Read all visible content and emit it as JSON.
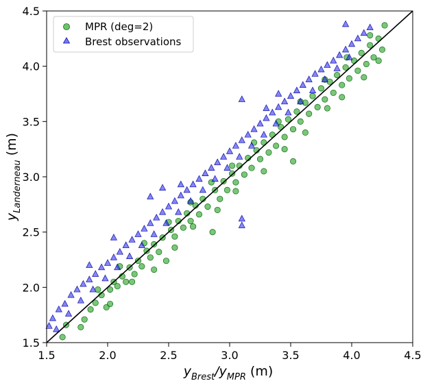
{
  "chart_data": {
    "type": "scatter",
    "xlabel": "y_Brest / y_MPR (m)",
    "ylabel": "y_Landerneau (m)",
    "xlim": [
      1.5,
      4.5
    ],
    "ylim": [
      1.5,
      4.5
    ],
    "xticks": [
      "1.5",
      "2.0",
      "2.5",
      "3.0",
      "3.5",
      "4.0",
      "4.5"
    ],
    "yticks": [
      "1.5",
      "2.0",
      "2.5",
      "3.0",
      "3.5",
      "4.0",
      "4.5"
    ],
    "grid": false,
    "legend_position": "top-left",
    "reference_line": {
      "from": [
        1.5,
        1.5
      ],
      "to": [
        4.5,
        4.5
      ],
      "color": "#000000"
    },
    "series": [
      {
        "name": "MPR (deg=2)",
        "marker": "circle",
        "color": "#22a022",
        "points": [
          [
            1.63,
            1.55
          ],
          [
            1.66,
            1.66
          ],
          [
            1.78,
            1.64
          ],
          [
            1.81,
            1.71
          ],
          [
            1.86,
            1.8
          ],
          [
            1.9,
            1.86
          ],
          [
            1.95,
            1.93
          ],
          [
            1.99,
            1.82
          ],
          [
            2.02,
            1.98
          ],
          [
            2.05,
            2.05
          ],
          [
            2.08,
            2.01
          ],
          [
            2.12,
            2.1
          ],
          [
            2.15,
            2.05
          ],
          [
            2.18,
            2.18
          ],
          [
            2.22,
            2.12
          ],
          [
            2.25,
            2.24
          ],
          [
            2.28,
            2.19
          ],
          [
            2.32,
            2.33
          ],
          [
            2.35,
            2.27
          ],
          [
            2.38,
            2.39
          ],
          [
            2.42,
            2.32
          ],
          [
            2.45,
            2.45
          ],
          [
            2.48,
            2.24
          ],
          [
            2.52,
            2.52
          ],
          [
            2.55,
            2.46
          ],
          [
            2.58,
            2.6
          ],
          [
            2.62,
            2.54
          ],
          [
            2.65,
            2.67
          ],
          [
            2.68,
            2.6
          ],
          [
            2.72,
            2.74
          ],
          [
            2.75,
            2.66
          ],
          [
            2.78,
            2.8
          ],
          [
            2.82,
            2.73
          ],
          [
            2.86,
            2.5
          ],
          [
            2.88,
            2.88
          ],
          [
            2.92,
            2.8
          ],
          [
            2.95,
            2.96
          ],
          [
            2.98,
            2.88
          ],
          [
            3.02,
            3.03
          ],
          [
            3.05,
            2.95
          ],
          [
            3.08,
            3.1
          ],
          [
            3.12,
            3.02
          ],
          [
            3.15,
            3.17
          ],
          [
            3.18,
            3.08
          ],
          [
            3.22,
            3.24
          ],
          [
            3.25,
            3.16
          ],
          [
            3.28,
            3.31
          ],
          [
            3.32,
            3.22
          ],
          [
            3.35,
            3.38
          ],
          [
            3.38,
            3.28
          ],
          [
            3.42,
            3.45
          ],
          [
            3.45,
            3.36
          ],
          [
            3.48,
            3.52
          ],
          [
            3.52,
            3.43
          ],
          [
            3.55,
            3.59
          ],
          [
            3.58,
            3.5
          ],
          [
            3.62,
            3.67
          ],
          [
            3.65,
            3.57
          ],
          [
            3.68,
            3.73
          ],
          [
            3.72,
            3.63
          ],
          [
            3.75,
            3.8
          ],
          [
            3.78,
            3.7
          ],
          [
            3.82,
            3.86
          ],
          [
            3.85,
            3.76
          ],
          [
            3.88,
            3.92
          ],
          [
            3.92,
            3.83
          ],
          [
            3.95,
            3.99
          ],
          [
            3.98,
            3.89
          ],
          [
            4.02,
            4.05
          ],
          [
            4.05,
            3.96
          ],
          [
            4.08,
            4.12
          ],
          [
            4.12,
            4.02
          ],
          [
            4.15,
            4.19
          ],
          [
            4.18,
            4.08
          ],
          [
            4.22,
            4.25
          ],
          [
            4.25,
            4.15
          ],
          [
            4.27,
            4.37
          ],
          [
            2.02,
            1.85
          ],
          [
            2.2,
            2.05
          ],
          [
            2.38,
            2.16
          ],
          [
            2.55,
            2.36
          ],
          [
            2.7,
            2.55
          ],
          [
            2.9,
            2.7
          ],
          [
            3.05,
            2.87
          ],
          [
            3.28,
            3.05
          ],
          [
            3.45,
            3.25
          ],
          [
            3.52,
            3.14
          ],
          [
            3.62,
            3.4
          ],
          [
            3.8,
            3.62
          ],
          [
            3.92,
            3.72
          ],
          [
            4.1,
            3.9
          ],
          [
            4.22,
            4.05
          ],
          [
            1.92,
            1.98
          ],
          [
            2.1,
            2.19
          ],
          [
            2.3,
            2.4
          ],
          [
            2.5,
            2.59
          ],
          [
            2.68,
            2.77
          ],
          [
            2.85,
            2.95
          ],
          [
            3.02,
            3.1
          ],
          [
            3.2,
            3.31
          ],
          [
            3.4,
            3.5
          ],
          [
            3.58,
            3.68
          ],
          [
            3.78,
            3.88
          ],
          [
            3.96,
            4.08
          ],
          [
            4.15,
            4.28
          ]
        ]
      },
      {
        "name": "Brest observations",
        "marker": "triangle",
        "color": "#2222ee",
        "points": [
          [
            1.52,
            1.65
          ],
          [
            1.55,
            1.72
          ],
          [
            1.6,
            1.8
          ],
          [
            1.65,
            1.85
          ],
          [
            1.7,
            1.93
          ],
          [
            1.75,
            1.98
          ],
          [
            1.8,
            2.03
          ],
          [
            1.85,
            2.07
          ],
          [
            1.9,
            2.12
          ],
          [
            1.95,
            2.18
          ],
          [
            2.0,
            2.22
          ],
          [
            2.05,
            2.27
          ],
          [
            2.1,
            2.32
          ],
          [
            2.15,
            2.38
          ],
          [
            2.2,
            2.43
          ],
          [
            2.25,
            2.48
          ],
          [
            2.3,
            2.53
          ],
          [
            2.35,
            2.58
          ],
          [
            2.4,
            2.63
          ],
          [
            2.45,
            2.68
          ],
          [
            2.5,
            2.73
          ],
          [
            2.55,
            2.78
          ],
          [
            2.6,
            2.83
          ],
          [
            2.65,
            2.88
          ],
          [
            2.7,
            2.93
          ],
          [
            2.75,
            2.98
          ],
          [
            2.8,
            3.03
          ],
          [
            2.85,
            3.08
          ],
          [
            2.9,
            3.13
          ],
          [
            2.95,
            3.18
          ],
          [
            3.0,
            3.23
          ],
          [
            3.05,
            3.28
          ],
          [
            3.1,
            3.33
          ],
          [
            3.15,
            3.38
          ],
          [
            3.2,
            3.43
          ],
          [
            3.25,
            3.48
          ],
          [
            3.3,
            3.53
          ],
          [
            3.35,
            3.58
          ],
          [
            3.4,
            3.63
          ],
          [
            3.45,
            3.68
          ],
          [
            3.5,
            3.73
          ],
          [
            3.55,
            3.78
          ],
          [
            3.6,
            3.83
          ],
          [
            3.65,
            3.88
          ],
          [
            3.7,
            3.93
          ],
          [
            3.75,
            3.97
          ],
          [
            3.8,
            4.01
          ],
          [
            3.85,
            4.05
          ],
          [
            3.9,
            4.1
          ],
          [
            3.95,
            4.15
          ],
          [
            4.0,
            4.2
          ],
          [
            4.05,
            4.25
          ],
          [
            4.1,
            4.3
          ],
          [
            4.15,
            4.35
          ],
          [
            3.95,
            4.38
          ],
          [
            1.58,
            1.62
          ],
          [
            1.68,
            1.76
          ],
          [
            1.78,
            1.88
          ],
          [
            1.88,
            1.98
          ],
          [
            1.98,
            2.08
          ],
          [
            2.08,
            2.18
          ],
          [
            2.18,
            2.28
          ],
          [
            2.28,
            2.38
          ],
          [
            2.38,
            2.48
          ],
          [
            2.48,
            2.58
          ],
          [
            2.58,
            2.68
          ],
          [
            2.68,
            2.78
          ],
          [
            2.78,
            2.88
          ],
          [
            2.88,
            2.98
          ],
          [
            2.98,
            3.08
          ],
          [
            3.08,
            3.18
          ],
          [
            3.18,
            3.28
          ],
          [
            3.28,
            3.38
          ],
          [
            3.38,
            3.48
          ],
          [
            3.48,
            3.58
          ],
          [
            3.58,
            3.68
          ],
          [
            3.68,
            3.78
          ],
          [
            3.78,
            3.88
          ],
          [
            3.88,
            3.98
          ],
          [
            3.98,
            4.08
          ],
          [
            2.45,
            2.9
          ],
          [
            2.6,
            2.93
          ],
          [
            2.05,
            2.45
          ],
          [
            1.85,
            2.2
          ],
          [
            3.1,
            3.7
          ],
          [
            3.1,
            2.56
          ],
          [
            3.1,
            2.62
          ],
          [
            3.4,
            3.75
          ],
          [
            3.3,
            3.62
          ],
          [
            2.35,
            2.82
          ]
        ]
      }
    ]
  },
  "colors": {
    "mpr_fill": "#22a022",
    "mpr_stroke": "#0d6a0d",
    "brest_fill": "#2222ee",
    "brest_stroke": "#1010a8",
    "reference_line": "#000000"
  }
}
